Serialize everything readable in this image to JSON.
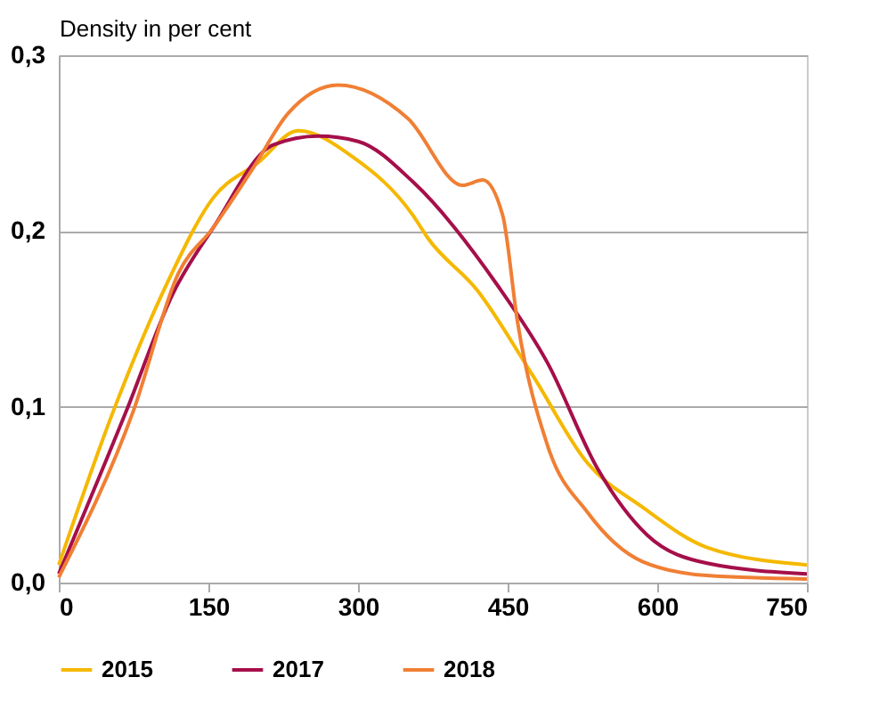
{
  "chart_data": {
    "type": "line",
    "ylabel": "Density in per cent",
    "xlim": [
      0,
      750
    ],
    "xticks": [
      0,
      150,
      300,
      450,
      600,
      750
    ],
    "ylim": [
      0,
      0.3
    ],
    "yticks": [
      {
        "value": 0,
        "label": "0,0"
      },
      {
        "value": 0.1,
        "label": "0,1"
      },
      {
        "value": 0.2,
        "label": "0,2"
      },
      {
        "value": 0.3,
        "label": "0,3"
      }
    ],
    "grid": "y",
    "legend": "bottom",
    "marker": "none",
    "line_style": "solid",
    "series": [
      {
        "name": "2015",
        "color": "#f5b800",
        "x": [
          0,
          55,
          110,
          155,
          200,
          240,
          295,
          355,
          370,
          420,
          475,
          530,
          585,
          650,
          750
        ],
        "values": [
          0.01,
          0.098,
          0.172,
          0.219,
          0.239,
          0.257,
          0.242,
          0.209,
          0.196,
          0.166,
          0.118,
          0.068,
          0.043,
          0.02,
          0.01
        ]
      },
      {
        "name": "2017",
        "color": "#a50f4a",
        "x": [
          0,
          68,
          115,
          155,
          215,
          260,
          300,
          355,
          440,
          490,
          540,
          590,
          650,
          750
        ],
        "values": [
          0.005,
          0.098,
          0.165,
          0.202,
          0.249,
          0.254,
          0.251,
          0.228,
          0.169,
          0.125,
          0.065,
          0.027,
          0.011,
          0.005
        ]
      },
      {
        "name": "2018",
        "color": "#f07f34",
        "x": [
          0,
          75,
          120,
          155,
          195,
          230,
          280,
          350,
          405,
          425,
          445,
          460,
          490,
          530,
          585,
          650,
          750
        ],
        "values": [
          0.003,
          0.098,
          0.176,
          0.202,
          0.236,
          0.267,
          0.283,
          0.264,
          0.226,
          0.229,
          0.209,
          0.148,
          0.078,
          0.04,
          0.012,
          0.004,
          0.002
        ]
      }
    ]
  }
}
